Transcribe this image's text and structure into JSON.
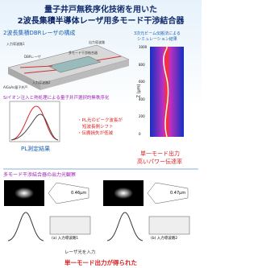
{
  "header": {
    "title_line1": "量子井戸無秩序化技術を用いた",
    "title_line2": "2波長集積半導体レーザ用多モード干渉結合器"
  },
  "structure": {
    "heading": "2波長集積DBRレーザの構成",
    "labels": [
      "入力導波路1",
      "出力導波路",
      "DBRレーザ",
      "多モード干渉結合器",
      "入力導波路2",
      "AlGaAs量子井戸"
    ]
  },
  "simulation": {
    "caption_line1": "3次元ビーム伝搬法による",
    "caption_line2": "シミュレーション結果",
    "y_label": "Z (µm)",
    "yticks": [
      "1000",
      "800",
      "600",
      "400",
      "200",
      "0"
    ]
  },
  "disordering": {
    "heading": "Siイオン注入と熱処理による量子井戸選択的無秩序化",
    "points": [
      "・PL光のピーク波長が",
      "短波長側シフト",
      "・伝搬損失が低減"
    ],
    "plot_caption": "PL測定結果"
  },
  "result1": {
    "line1": "単一モード出力",
    "line2": "高いパワー伝達率"
  },
  "observation": {
    "heading": "多モード干渉結合器の出力光観察",
    "widths": [
      "0.46µm",
      "0.47µm"
    ],
    "captions": [
      "(a) 入力導波路1",
      "(b) 入力導波路2"
    ],
    "input_note": "レーザ光を入力",
    "conclusion": "単一モード出力が得られた"
  }
}
